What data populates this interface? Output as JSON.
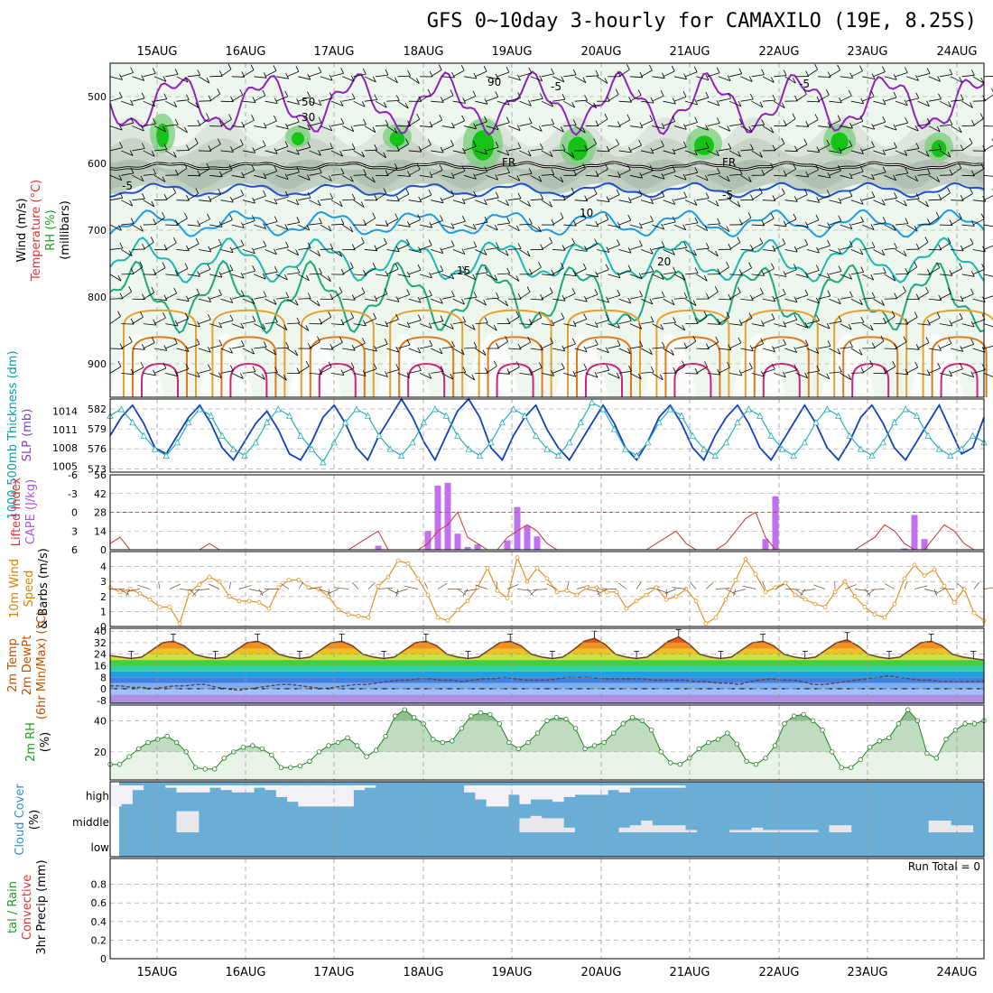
{
  "title": "GFS 0~10day 3-hourly for CAMAXILO (19E, 8.25S)",
  "dates": [
    "15AUG",
    "16AUG",
    "17AUG",
    "18AUG",
    "19AUG",
    "20AUG",
    "21AUG",
    "22AUG",
    "23AUG",
    "24AUG"
  ],
  "panel_labels": {
    "upper": [
      {
        "text": "Wind (m/s)",
        "color": "#000000"
      },
      {
        "text": "Temperature (°C)",
        "color": "#e03030"
      },
      {
        "text": "RH (%)",
        "color": "#1a9e1a"
      },
      {
        "text": "(millibars)",
        "color": "#000000"
      }
    ],
    "slp": [
      {
        "text": "1000-500mb Thickness (dm)",
        "color": "#00a0b0"
      },
      {
        "text": "SLP (mb)",
        "color": "#8040c0"
      }
    ],
    "cape": [
      {
        "text": "Lifted Index",
        "color": "#e03030"
      },
      {
        "text": "CAPE (J/kg)",
        "color": "#b050e0"
      }
    ],
    "wind10": [
      {
        "text": "10m Wind",
        "color": "#e08000"
      },
      {
        "text": "Speed",
        "color": "#e08000"
      },
      {
        "text": "& Barbs (m/s)",
        "color": "#000000"
      }
    ],
    "temp2m": [
      {
        "text": "2m Temp",
        "color": "#c05000"
      },
      {
        "text": "2m DewPt",
        "color": "#c05000"
      },
      {
        "text": "(6hr Min/Max) (°C)",
        "color": "#c05000"
      }
    ],
    "rh2m": [
      {
        "text": "2m RH",
        "color": "#1a9e1a"
      },
      {
        "text": "(%)",
        "color": "#000000"
      }
    ],
    "cloud": [
      {
        "text": "Cloud Cover",
        "color": "#3090c0"
      },
      {
        "text": "(%)",
        "color": "#000000"
      }
    ],
    "precip": [
      {
        "text": "tal / Rain",
        "color": "#1a9e1a"
      },
      {
        "text": "Convective",
        "color": "#e03030"
      },
      {
        "text": "3hr Precip (mm)",
        "color": "#000000"
      }
    ]
  },
  "contour_labels": [
    "-5",
    "-5",
    "FR",
    "FR",
    "-5",
    "-5",
    "10",
    "15",
    "20",
    "30",
    "50",
    "90"
  ],
  "cloud_levels": [
    "high",
    "middle",
    "low"
  ],
  "run_total": "Run Total = 0",
  "chart_data": [
    {
      "type": "contour",
      "name": "upper",
      "ylabel": "(millibars)",
      "yticks": [
        500,
        600,
        700,
        800,
        900
      ],
      "ylim": [
        950,
        450
      ],
      "temperature_lines": [
        {
          "label": "-5",
          "color": "#9020c0",
          "mean_p": 510,
          "amp": 35
        },
        {
          "label": "FR",
          "color": "#000000",
          "mean_p": 604,
          "amp": 4
        },
        {
          "label": "-5",
          "color": "#2050d0",
          "mean_p": 640,
          "amp": 8
        },
        {
          "label": "10",
          "color": "#1e9be0",
          "mean_p": 690,
          "amp": 15
        },
        {
          "label": "15",
          "color": "#1ab8b0",
          "mean_p": 745,
          "amp": 25
        },
        {
          "label": "20",
          "color": "#1aa880",
          "mean_p": 800,
          "amp": 40
        }
      ]
    },
    {
      "type": "line",
      "name": "slp_thickness",
      "yticks_left": [
        573,
        576,
        579,
        582
      ],
      "yticks_right": [
        1005,
        1008,
        1011,
        1014
      ],
      "slp": [
        1010,
        1013,
        1015,
        1012,
        1008,
        1007,
        1010,
        1013,
        1015,
        1012,
        1008,
        1006,
        1009,
        1012,
        1014,
        1011,
        1007,
        1006,
        1009,
        1013,
        1015,
        1012,
        1008,
        1006,
        1010,
        1013,
        1016,
        1013,
        1009,
        1006,
        1010,
        1014,
        1016,
        1013,
        1008,
        1006,
        1010,
        1013,
        1015,
        1011,
        1008,
        1006,
        1009,
        1012,
        1015,
        1012,
        1008,
        1006,
        1009,
        1013,
        1015,
        1012,
        1008,
        1006,
        1010,
        1013,
        1015,
        1012,
        1008,
        1006,
        1009,
        1012,
        1015,
        1012,
        1008,
        1006,
        1009,
        1013,
        1015,
        1012,
        1008,
        1006,
        1009,
        1012,
        1015,
        1011,
        1007,
        1008,
        1013
      ],
      "thickness": [
        581,
        582,
        580,
        578,
        576,
        575,
        577,
        580,
        582,
        581,
        578,
        576,
        575,
        577,
        580,
        582,
        581,
        578,
        576,
        574,
        577,
        580,
        582,
        581,
        578,
        576,
        575,
        577,
        580,
        582,
        581,
        578,
        576,
        575,
        577,
        580,
        582,
        581,
        578,
        576,
        575,
        577,
        580,
        583,
        582,
        579,
        576,
        575,
        577,
        580,
        582,
        581,
        578,
        576,
        575,
        577,
        580,
        582,
        581,
        578,
        576,
        575,
        577,
        580,
        582,
        581,
        578,
        576,
        575,
        577,
        580,
        582,
        581,
        578,
        576,
        575,
        576,
        578,
        577
      ]
    },
    {
      "type": "bar",
      "name": "cape_li",
      "yticks_left": [
        -6,
        -3,
        0,
        3,
        6
      ],
      "yticks_right": [
        0,
        14,
        28,
        42,
        56
      ],
      "cape": [
        0,
        0,
        0,
        0,
        0,
        0,
        0,
        0,
        0,
        0,
        0,
        0,
        0,
        0,
        0,
        0,
        0,
        0,
        0,
        0,
        0,
        0,
        0,
        0,
        0,
        0,
        0,
        3,
        0,
        0,
        0,
        0,
        14,
        48,
        50,
        12,
        2,
        4,
        0,
        0,
        7,
        32,
        18,
        10,
        0,
        0,
        0,
        0,
        0,
        0,
        0,
        0,
        0,
        0,
        0,
        0,
        0,
        0,
        0,
        0,
        0,
        0,
        0,
        0,
        0,
        0,
        8,
        40,
        0,
        0,
        0,
        0,
        0,
        0,
        0,
        0,
        0,
        0,
        0,
        0,
        1,
        26,
        8,
        0,
        0,
        0,
        0,
        0,
        0
      ],
      "lifted_index": [
        5,
        4,
        6,
        6,
        6,
        6,
        6,
        6,
        6,
        6,
        5,
        6,
        6,
        6,
        6,
        6,
        6,
        6,
        6,
        6,
        6,
        6,
        6,
        6,
        6,
        5,
        4,
        3,
        6,
        6,
        6,
        6,
        5,
        3,
        2,
        0,
        4,
        5,
        6,
        6,
        4,
        3,
        2,
        3,
        5,
        6,
        6,
        6,
        6,
        6,
        6,
        6,
        6,
        6,
        6,
        5,
        4,
        3,
        5,
        6,
        6,
        6,
        5,
        3,
        1,
        0,
        4,
        6,
        6,
        6,
        6,
        6,
        6,
        6,
        6,
        6,
        5,
        4,
        2,
        3,
        5,
        6,
        6,
        4,
        2,
        3,
        5,
        6,
        6
      ]
    },
    {
      "type": "line",
      "name": "wind10",
      "yticks": [
        0,
        1,
        2,
        3,
        4
      ],
      "speed": [
        2.6,
        2.3,
        2.5,
        2.2,
        1.8,
        1.3,
        1.3,
        0.2,
        2.3,
        2.8,
        3.3,
        3.0,
        2.0,
        1.7,
        1.7,
        1.6,
        1.2,
        2.6,
        3.1,
        3.1,
        2.6,
        2.5,
        2.0,
        1.1,
        0.8,
        0.7,
        0.6,
        2.7,
        3.3,
        4.4,
        4.2,
        3.2,
        2.1,
        0.6,
        0.4,
        1.1,
        1.7,
        2.6,
        3.9,
        2.4,
        1.9,
        4.6,
        3.0,
        3.9,
        3.2,
        2.3,
        2.4,
        2.1,
        2.6,
        2.6,
        2.3,
        2.3,
        1.2,
        1.7,
        2.1,
        2.6,
        1.8,
        2.0,
        2.5,
        1.7,
        0.2,
        0.6,
        1.8,
        3.1,
        4.5,
        3.5,
        2.3,
        2.6,
        2.9,
        2.1,
        1.8,
        1.5,
        1.3,
        2.3,
        3.0,
        2.0,
        1.3,
        0.8,
        0.6,
        1.5,
        3.2,
        4.1,
        3.4,
        3.8,
        2.7,
        1.6,
        2.5,
        0.9,
        0.4
      ]
    },
    {
      "type": "area",
      "name": "temp2m",
      "yticks": [
        -8,
        0,
        8,
        16,
        24,
        32,
        40
      ],
      "temp": [
        23,
        22,
        21,
        22,
        27,
        32,
        33,
        30,
        24,
        22,
        21,
        22,
        27,
        32,
        33,
        30,
        24,
        22,
        21,
        22,
        27,
        32,
        33,
        30,
        24,
        22,
        21,
        22,
        27,
        32,
        33,
        30,
        24,
        22,
        21,
        22,
        27,
        32,
        33,
        30,
        24,
        22,
        21,
        22,
        27,
        33,
        35,
        31,
        24,
        22,
        21,
        22,
        27,
        33,
        36,
        31,
        24,
        22,
        21,
        22,
        27,
        32,
        33,
        30,
        24,
        22,
        21,
        22,
        27,
        32,
        34,
        30,
        24,
        22,
        21,
        22,
        27,
        32,
        33,
        30,
        24,
        22,
        21,
        20
      ],
      "dewpoint": [
        2,
        2,
        1,
        1,
        0,
        1,
        2,
        2,
        3,
        3,
        1,
        0,
        -1,
        0,
        1,
        2,
        3,
        3,
        2,
        1,
        0,
        1,
        2,
        3,
        3,
        4,
        5,
        6,
        6,
        7,
        7,
        6,
        6,
        5,
        6,
        7,
        7,
        8,
        7,
        6,
        6,
        6,
        7,
        8,
        8,
        8,
        7,
        7,
        7,
        7,
        7,
        6,
        6,
        6,
        6,
        5,
        5,
        4,
        4,
        3,
        5,
        6,
        7,
        6,
        6,
        5,
        3,
        3,
        4,
        5,
        6,
        7,
        8,
        9,
        8,
        7,
        6,
        6,
        5,
        5,
        5,
        5,
        5
      ]
    },
    {
      "type": "area",
      "name": "rh2m",
      "yticks": [
        20,
        40
      ],
      "rh": [
        12,
        12,
        17,
        22,
        26,
        28,
        30,
        26,
        20,
        10,
        9,
        9,
        16,
        20,
        23,
        24,
        22,
        18,
        10,
        10,
        11,
        14,
        20,
        24,
        26,
        29,
        24,
        17,
        21,
        30,
        43,
        47,
        42,
        38,
        28,
        26,
        27,
        35,
        43,
        45,
        44,
        38,
        26,
        22,
        26,
        32,
        40,
        42,
        41,
        35,
        22,
        24,
        26,
        32,
        38,
        42,
        40,
        34,
        20,
        13,
        12,
        16,
        22,
        26,
        28,
        32,
        25,
        14,
        12,
        16,
        24,
        38,
        43,
        44,
        40,
        34,
        20,
        10,
        10,
        15,
        23,
        27,
        29,
        38,
        47,
        40,
        19,
        16,
        28,
        34,
        38,
        38,
        40
      ]
    },
    {
      "type": "bar",
      "name": "cloud",
      "levels": [
        "high",
        "middle",
        "low"
      ]
    },
    {
      "type": "bar",
      "name": "precip",
      "yticks": [
        0,
        0.2,
        0.4,
        0.6,
        0.8
      ],
      "values": []
    }
  ]
}
